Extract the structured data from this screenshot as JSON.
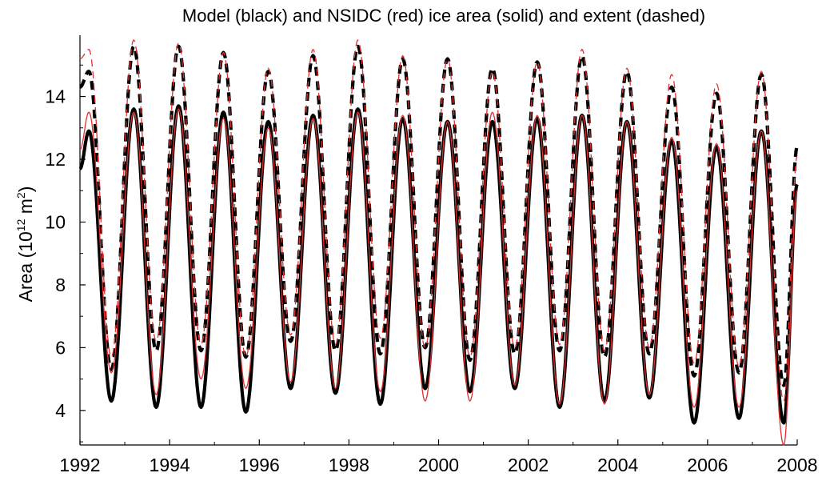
{
  "chart_data": {
    "type": "line",
    "title": "Model (black) and NSIDC (red) ice area (solid) and extent (dashed)",
    "ylabel": {
      "base": "Area (10",
      "exp1": "12",
      "mid": " m",
      "exp2": "2",
      "end": ")"
    },
    "xlabel": "",
    "xlim": [
      1992,
      2008
    ],
    "ylim": [
      2.9,
      15.9
    ],
    "x_ticks": [
      "1992",
      "1994",
      "1996",
      "1998",
      "2000",
      "2002",
      "2004",
      "2006",
      "2008"
    ],
    "y_ticks": [
      "4",
      "6",
      "8",
      "10",
      "12",
      "14"
    ],
    "grid": false,
    "legend": "none",
    "colors": {
      "model": "#000000",
      "nsidc": "#e03030"
    },
    "year_starts": [
      1992,
      1993,
      1994,
      1995,
      1996,
      1997,
      1998,
      1999,
      2000,
      2001,
      2002,
      2003,
      2004,
      2005,
      2006,
      2007
    ],
    "series": [
      {
        "style": "solid-black",
        "values": {
          "start": 11.7,
          "end": 11.2,
          "max": [
            12.9,
            13.6,
            13.7,
            13.5,
            13.2,
            13.4,
            13.6,
            13.3,
            13.2,
            13.2,
            13.3,
            13.4,
            13.2,
            12.6,
            12.4,
            12.9
          ],
          "min": [
            4.3,
            4.1,
            4.1,
            3.95,
            4.7,
            4.55,
            4.2,
            4.7,
            4.6,
            4.7,
            4.1,
            4.3,
            4.4,
            3.6,
            3.75,
            3.6
          ]
        }
      },
      {
        "style": "dashed-black",
        "values": {
          "start": 14.3,
          "end": 12.4,
          "max": [
            14.8,
            15.6,
            15.6,
            15.4,
            14.8,
            15.3,
            15.6,
            15.2,
            15.2,
            14.9,
            15.1,
            15.3,
            14.8,
            14.3,
            14.1,
            14.7
          ],
          "min": [
            5.3,
            5.9,
            5.9,
            5.7,
            6.2,
            5.9,
            5.8,
            6.0,
            5.6,
            5.8,
            5.9,
            5.7,
            5.8,
            5.1,
            5.2,
            4.8
          ]
        }
      },
      {
        "style": "solid-red",
        "values": {
          "start": 12.3,
          "end": 11.0,
          "max": [
            13.5,
            13.5,
            13.6,
            13.3,
            13.0,
            13.3,
            13.5,
            13.4,
            13.2,
            13.5,
            13.4,
            13.4,
            13.2,
            12.7,
            12.5,
            12.9
          ],
          "min": [
            5.2,
            4.5,
            5.0,
            4.7,
            4.9,
            4.7,
            4.6,
            4.3,
            4.3,
            4.8,
            4.2,
            4.2,
            4.5,
            4.1,
            4.1,
            2.9
          ]
        }
      },
      {
        "style": "dashed-red",
        "values": {
          "start": 15.2,
          "end": 12.1,
          "max": [
            15.5,
            15.8,
            15.7,
            15.4,
            14.9,
            15.5,
            15.8,
            15.3,
            15.2,
            14.8,
            15.1,
            15.5,
            14.9,
            14.7,
            14.4,
            14.8
          ],
          "min": [
            5.7,
            6.2,
            6.1,
            5.7,
            6.4,
            6.1,
            6.3,
            6.0,
            5.7,
            6.0,
            6.1,
            5.9,
            6.0,
            5.5,
            5.4,
            4.3
          ]
        }
      }
    ]
  }
}
